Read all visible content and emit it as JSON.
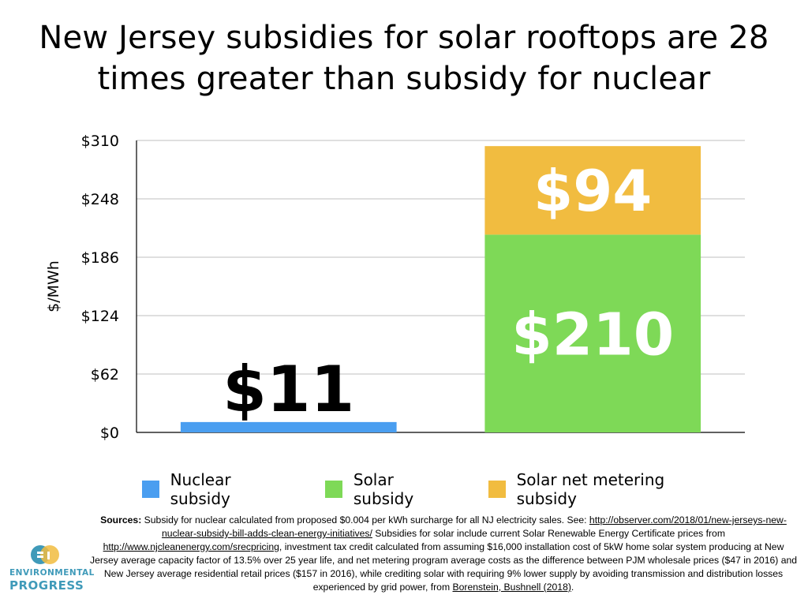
{
  "chart_data": {
    "type": "bar",
    "stacked": true,
    "title": "New Jersey subsidies for solar rooftops are 28 times greater than subsidy for nuclear",
    "xlabel": "",
    "ylabel": "$/MWh",
    "ylim": [
      0,
      310
    ],
    "yticks": [
      0,
      62,
      124,
      186,
      248,
      310
    ],
    "ytick_labels": [
      "$0",
      "$62",
      "$124",
      "$186",
      "$248",
      "$310"
    ],
    "grid": true,
    "legend_position": "bottom",
    "series": [
      {
        "name": "Nuclear subsidy",
        "color": "#4a9ef0",
        "values": [
          11,
          0
        ],
        "labels": [
          "$11",
          ""
        ],
        "label_color": "#000000"
      },
      {
        "name": "Solar subsidy",
        "color": "#7ed957",
        "values": [
          0,
          210
        ],
        "labels": [
          "",
          "$210"
        ],
        "label_color": "#ffffff"
      },
      {
        "name": "Solar net metering subsidy",
        "color": "#f1bc40",
        "values": [
          0,
          94
        ],
        "labels": [
          "",
          "$94"
        ],
        "label_color": "#ffffff"
      }
    ]
  },
  "sources": {
    "bold": "Sources:",
    "p1": " Subsidy for nuclear calculated from proposed $0.004 per kWh surcharge for all NJ electricity sales. See: ",
    "link1": "http://observer.com/2018/01/new-jerseys-new-nuclear-subsidy-bill-adds-clean-energy-initiatives/",
    "p2": "  Subsidies for solar include current Solar Renewable Energy Certificate prices from ",
    "link2": "http://www.njcleanenergy.com/srecpricing",
    "p3": ", investment tax credit calculated from assuming $16,000 installation cost of 5kW home solar system producing at New Jersey average capacity factor of 13.5% over 25 year life, and net metering program average costs as the difference between PJM wholesale prices ($47 in 2016) and New Jersey average residential retail prices ($157 in 2016), while crediting solar with requiring 9% lower supply by avoiding transmission and distribution losses experienced by grid power, from ",
    "link3": "Borenstein, Bushnell (2018)",
    "p4": "."
  },
  "logo": {
    "line1": "ENVIRONMENTAL",
    "line2": "PROGRESS",
    "colors": {
      "primary": "#3f9ab9",
      "accent": "#f1bc40"
    }
  }
}
